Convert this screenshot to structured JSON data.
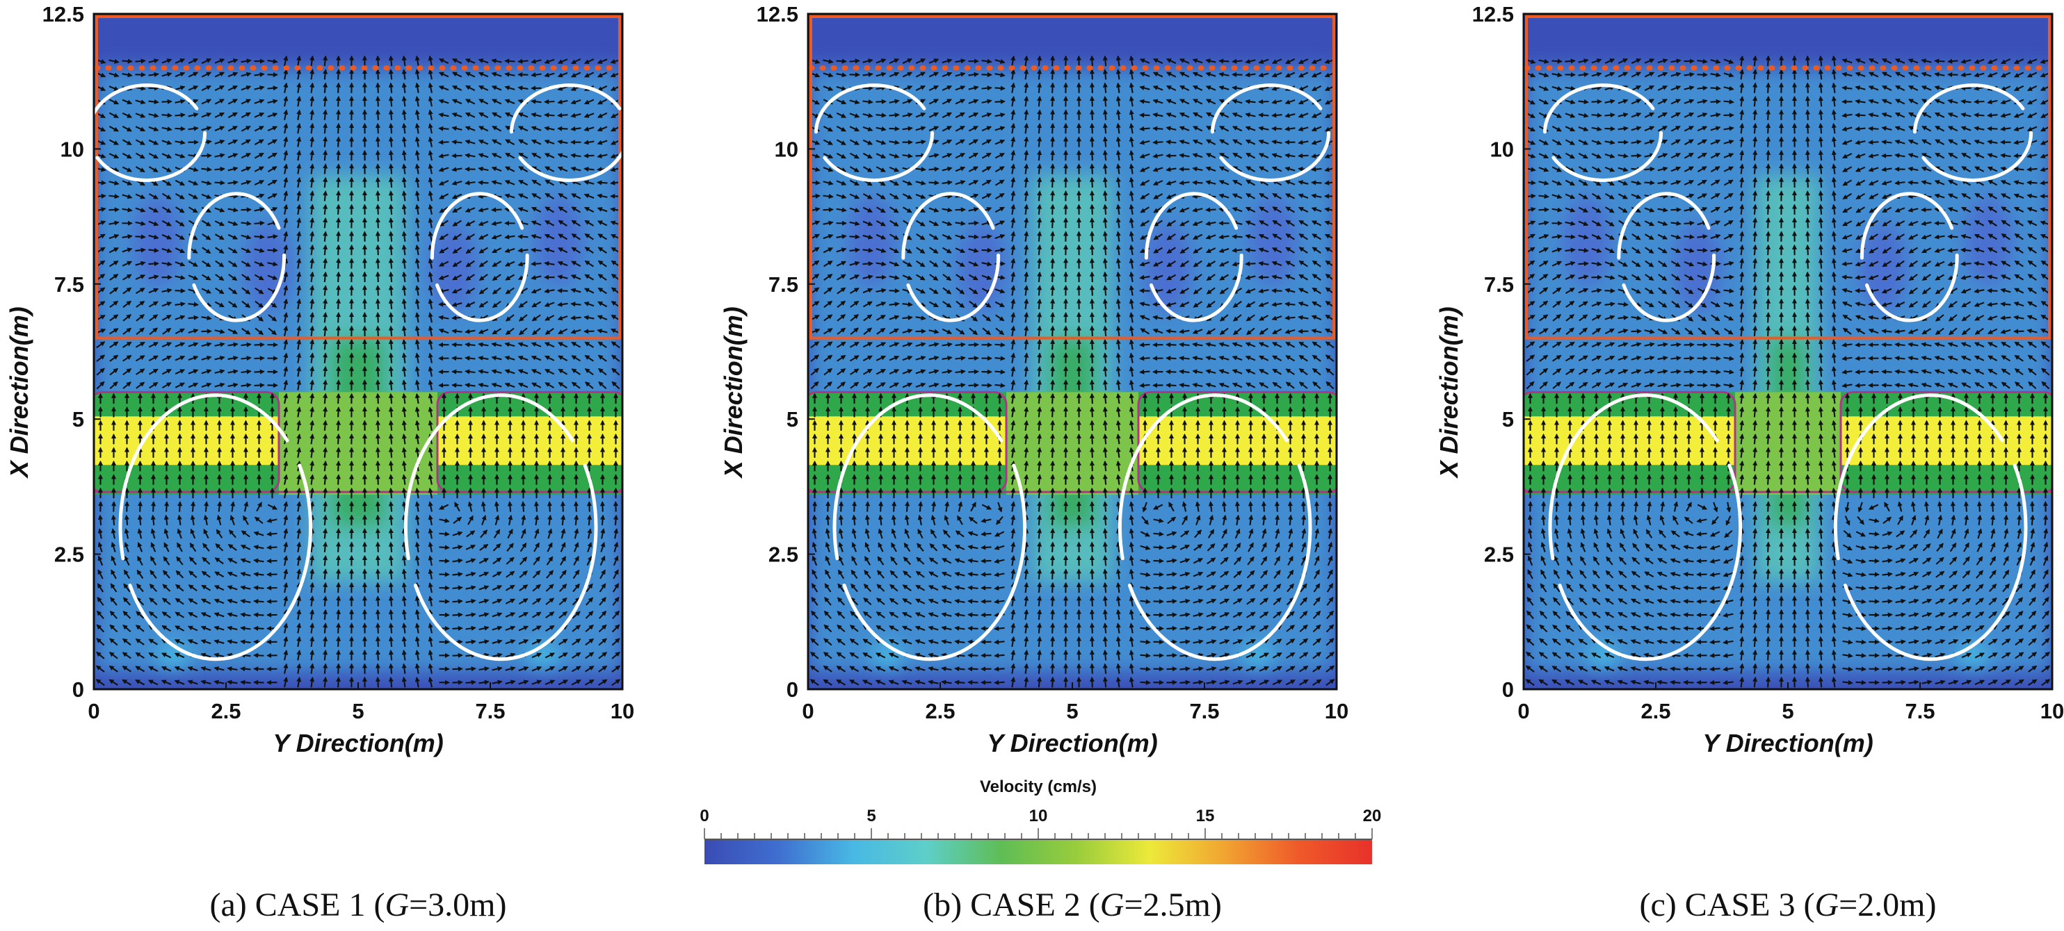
{
  "colors": {
    "background_low": "#3b4fb8",
    "water_mid": "#49c0e6",
    "pile_low": "#2ea84a",
    "pile_high": "#f2ee3a",
    "boundary_orange": "#ee5a22",
    "pile_outline_magenta": "#b0358a",
    "arrow_white": "#ffffff",
    "vector_black": "#111111"
  },
  "colorbar": {
    "title": "Velocity (cm/s)",
    "ticks": [
      "0",
      "5",
      "10",
      "15",
      "20"
    ],
    "range": [
      0,
      20
    ],
    "stops": [
      "#3a4cb4",
      "#3f6fd0",
      "#48b8e4",
      "#5ecfc8",
      "#5fbd55",
      "#98cc3c",
      "#ede93a",
      "#f1a531",
      "#ef5a2a",
      "#e8312a"
    ]
  },
  "chart_data": [
    {
      "type": "heatmap",
      "panel": "a",
      "caption_prefix": "(a) CASE 1 (",
      "caption_var": "G",
      "caption_suffix": "=3.0m)",
      "xlabel": "Y Direction(m)",
      "ylabel": "X Direction(m)",
      "xlim": [
        0,
        10
      ],
      "ylim": [
        0,
        12.5
      ],
      "xticks": [
        "0",
        "2.5",
        "5",
        "7.5",
        "10"
      ],
      "yticks": [
        "0",
        "2.5",
        "5",
        "7.5",
        "10",
        "12.5"
      ],
      "gap_m": 3.0,
      "pile_zone_y": [
        3.6,
        5.5
      ],
      "solid_line_x": 6.5,
      "dotted_line_x": 11.5,
      "grid": false
    },
    {
      "type": "heatmap",
      "panel": "b",
      "caption_prefix": "(b) CASE 2 (",
      "caption_var": "G",
      "caption_suffix": "=2.5m)",
      "xlabel": "Y Direction(m)",
      "ylabel": "X Direction(m)",
      "xlim": [
        0,
        10
      ],
      "ylim": [
        0,
        12.5
      ],
      "xticks": [
        "0",
        "2.5",
        "5",
        "7.5",
        "10"
      ],
      "yticks": [
        "0",
        "2.5",
        "5",
        "7.5",
        "10",
        "12.5"
      ],
      "gap_m": 2.5,
      "pile_zone_y": [
        3.6,
        5.5
      ],
      "solid_line_x": 6.5,
      "dotted_line_x": 11.5,
      "grid": false
    },
    {
      "type": "heatmap",
      "panel": "c",
      "caption_prefix": "(c) CASE 3 (",
      "caption_var": "G",
      "caption_suffix": "=2.0m)",
      "xlabel": "Y Direction(m)",
      "ylabel": "X Direction(m)",
      "xlim": [
        0,
        10
      ],
      "ylim": [
        0,
        12.5
      ],
      "xticks": [
        "0",
        "2.5",
        "5",
        "7.5",
        "10"
      ],
      "yticks": [
        "0",
        "2.5",
        "5",
        "7.5",
        "10",
        "12.5"
      ],
      "gap_m": 2.0,
      "pile_zone_y": [
        3.6,
        5.5
      ],
      "solid_line_x": 6.5,
      "dotted_line_x": 11.5,
      "grid": false
    }
  ]
}
